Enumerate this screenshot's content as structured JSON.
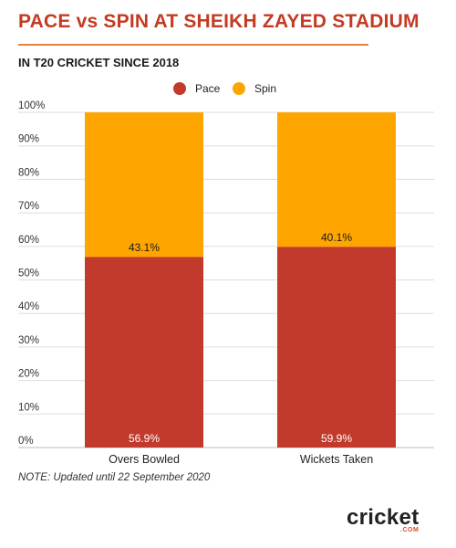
{
  "header": {
    "title": "PACE vs SPIN AT SHEIKH ZAYED STADIUM",
    "subtitle": "IN T20 CRICKET SINCE 2018"
  },
  "note": "NOTE: Updated until 22 September 2020",
  "logo": {
    "text": "cricket",
    "suffix": ".COM"
  },
  "chart_data": {
    "type": "bar",
    "stacked": true,
    "categories": [
      "Overs Bowled",
      "Wickets Taken"
    ],
    "series": [
      {
        "name": "Pace",
        "values": [
          56.9,
          59.9
        ],
        "labels": [
          "56.9%",
          "59.9%"
        ],
        "color": "#c13a2b"
      },
      {
        "name": "Spin",
        "values": [
          43.1,
          40.1
        ],
        "labels": [
          "43.1%",
          "40.1%"
        ],
        "color": "#ffa500"
      }
    ],
    "yticks": [
      "0%",
      "10%",
      "20%",
      "30%",
      "40%",
      "50%",
      "60%",
      "70%",
      "80%",
      "90%",
      "100%"
    ],
    "ylim": [
      0,
      100
    ],
    "grid": true,
    "legend_position": "top-center"
  }
}
